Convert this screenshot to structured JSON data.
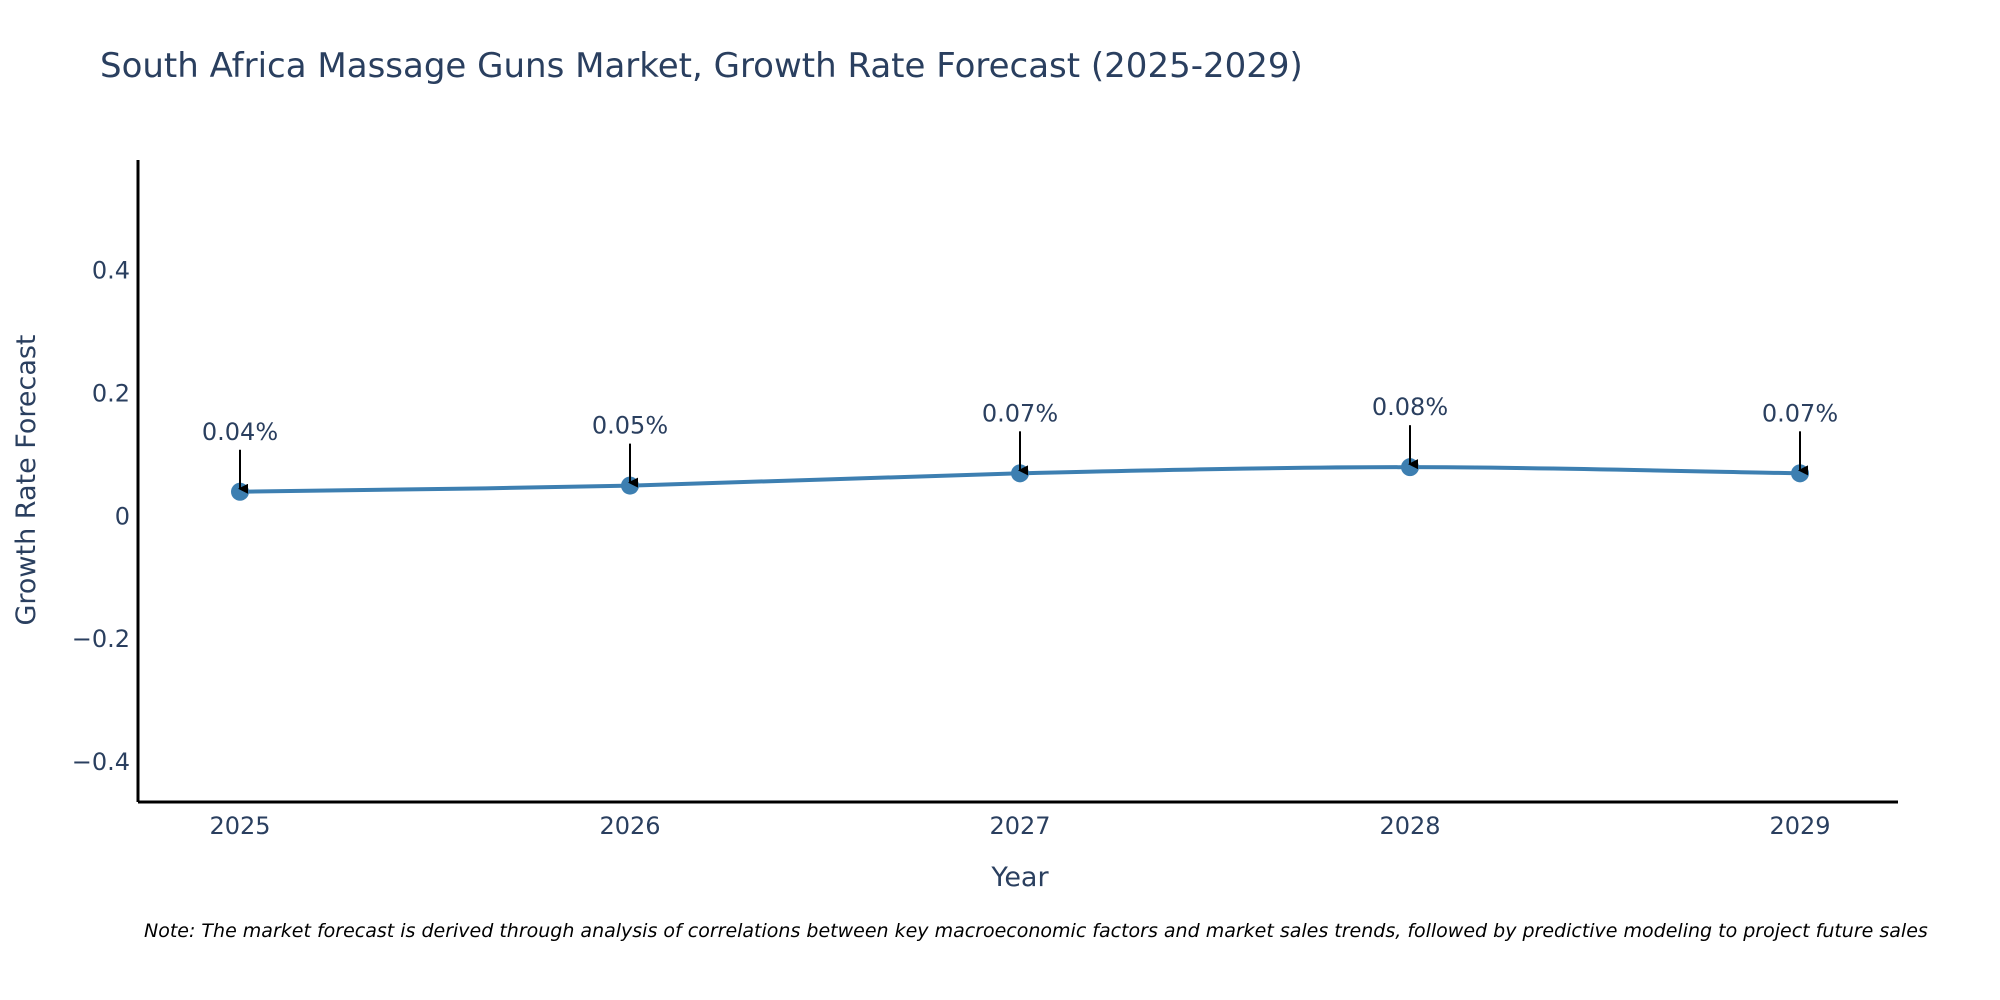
{
  "chart_data": {
    "type": "line",
    "title": "South Africa Massage Guns Market, Growth Rate Forecast (2025-2029)",
    "xlabel": "Year",
    "ylabel": "Growth Rate Forecast",
    "categories": [
      "2025",
      "2026",
      "2027",
      "2028",
      "2029"
    ],
    "values": [
      0.04,
      0.05,
      0.07,
      0.08,
      0.07
    ],
    "annotations": [
      "0.04%",
      "0.05%",
      "0.07%",
      "0.08%",
      "0.07%"
    ],
    "y_ticks": [
      -0.4,
      -0.2,
      0,
      0.2,
      0.4
    ],
    "y_tick_labels": [
      "−0.4",
      "−0.2",
      "0",
      "0.2",
      "0.4"
    ],
    "ylim": [
      -0.465,
      0.58
    ],
    "grid": false,
    "line_color": "#3d7fb1",
    "marker_color": "#3d7fb1",
    "arrow_color": "#000000"
  },
  "note": "Note: The market forecast is derived through analysis of correlations between key macroeconomic factors and market sales trends, followed by predictive modeling to project future sales"
}
